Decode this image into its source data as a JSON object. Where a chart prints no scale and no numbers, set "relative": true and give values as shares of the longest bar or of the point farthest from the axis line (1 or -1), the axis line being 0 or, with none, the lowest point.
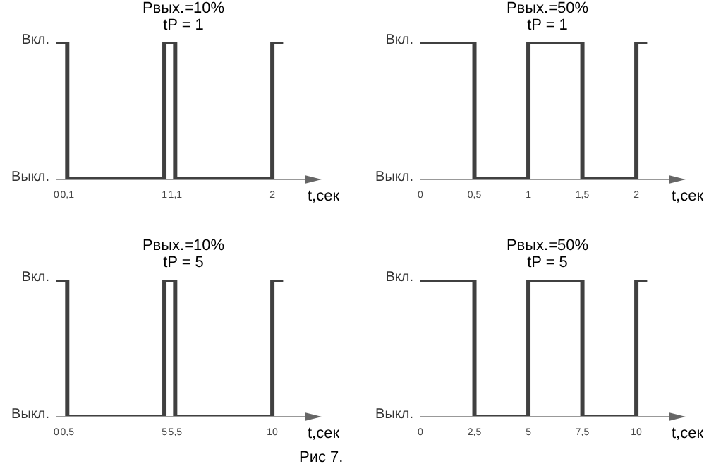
{
  "chart_data": [
    {
      "type": "step",
      "title": "Рвых.=10%",
      "subtitle": "tP = 1",
      "xlabel": "t,сек",
      "color": "#404040",
      "relative": true,
      "x": [
        0,
        0.1,
        1,
        1.1,
        2,
        2.1
      ],
      "values": [
        1,
        0,
        1,
        0,
        1,
        1
      ],
      "xlim": [
        0,
        2.3
      ],
      "xticks": [
        0,
        {
          "value": 0.1,
          "label": "0,1"
        },
        1,
        {
          "value": 1.1,
          "label": "1,1"
        },
        2
      ],
      "annotations": [
        "Вкл.",
        "Выкл."
      ]
    },
    {
      "type": "step",
      "title": "Рвых.=50%",
      "subtitle": "tP = 1",
      "xlabel": "t,сек",
      "color": "#404040",
      "relative": true,
      "x": [
        0,
        0.5,
        1,
        1.5,
        2,
        2.1
      ],
      "values": [
        1,
        0,
        1,
        0,
        1,
        1
      ],
      "xlim": [
        0,
        2.3
      ],
      "xticks": [
        0,
        {
          "value": 0.5,
          "label": "0,5"
        },
        1,
        {
          "value": 1.5,
          "label": "1,5"
        },
        2
      ],
      "annotations": [
        "Вкл.",
        "Выкл."
      ]
    },
    {
      "type": "step",
      "title": "Рвых.=10%",
      "subtitle": "tP = 5",
      "xlabel": "t,сек",
      "color": "#404040",
      "relative": true,
      "x": [
        0,
        0.5,
        5,
        5.5,
        10,
        10.5
      ],
      "values": [
        1,
        0,
        1,
        0,
        1,
        1
      ],
      "xlim": [
        0,
        11.5
      ],
      "xticks": [
        0,
        {
          "value": 0.5,
          "label": "0,5"
        },
        5,
        {
          "value": 5.5,
          "label": "5,5"
        },
        10
      ],
      "annotations": [
        "Вкл.",
        "Выкл.",
        "Рис 7."
      ]
    },
    {
      "type": "step",
      "title": "Рвых.=50%",
      "subtitle": "tP = 5",
      "xlabel": "t,сек",
      "color": "#404040",
      "relative": true,
      "x": [
        0,
        2.5,
        5,
        7.5,
        10,
        10.5
      ],
      "values": [
        1,
        0,
        1,
        0,
        1,
        1
      ],
      "xlim": [
        0,
        11.5
      ],
      "xticks": [
        0,
        {
          "value": 2.5,
          "label": "2,5"
        },
        5,
        {
          "value": 7.5,
          "label": "7,5"
        },
        10
      ],
      "annotations": [
        "Вкл.",
        "Выкл."
      ]
    }
  ]
}
